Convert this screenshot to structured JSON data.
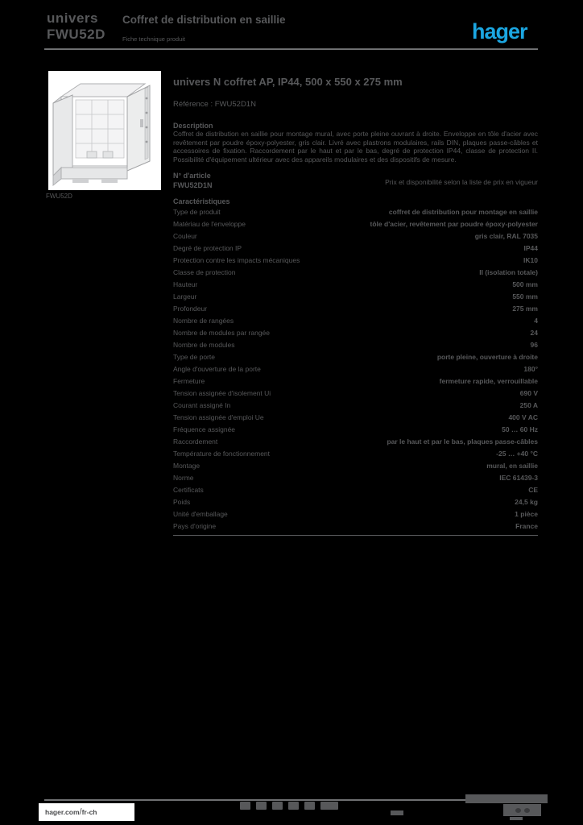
{
  "colors": {
    "background": "#000000",
    "text_gray": "#57585a",
    "divider_gray": "#6f7072",
    "brand_blue": "#1ba6e1",
    "white": "#ffffff"
  },
  "header": {
    "product_ref_line1": "univers",
    "product_ref_line2": "FWU52D",
    "title": "Coffret de distribution en saillie",
    "subtitle": "Fiche technique produit",
    "logo_text": "hager"
  },
  "product_image": {
    "caption": "FWU52D",
    "alt_name": "cabinet-photo"
  },
  "main": {
    "title": "univers N coffret AP, IP44, 500 x 550 x 275 mm",
    "subtitle": "Référence : FWU52D1N",
    "description_heading": "Description",
    "description": "Coffret de distribution en saillie pour montage mural, avec porte pleine ouvrant à droite. Enveloppe en tôle d'acier avec revêtement par poudre époxy-polyester, gris clair. Livré avec plastrons modulaires, rails DIN, plaques passe-câbles et accessoires de fixation. Raccordement par le haut et par le bas, degré de protection IP44, classe de protection II. Possibilité d'équipement ultérieur avec des appareils modulaires et des dispositifs de mesure.",
    "article_label": "N° d'article",
    "article_value": "FWU52D1N",
    "availability_note": "Prix et disponibilité selon la liste de prix en vigueur",
    "characteristics_heading": "Caractéristiques",
    "characteristics": [
      {
        "label": "Type de produit",
        "value": "coffret de distribution pour montage en saillie"
      },
      {
        "label": "Matériau de l'enveloppe",
        "value": "tôle d'acier, revêtement par poudre époxy-polyester"
      },
      {
        "label": "Couleur",
        "value": "gris clair, RAL 7035"
      },
      {
        "label": "Degré de protection IP",
        "value": "IP44"
      },
      {
        "label": "Protection contre les impacts mécaniques",
        "value": "IK10"
      },
      {
        "label": "Classe de protection",
        "value": "II (isolation totale)"
      },
      {
        "label": "Hauteur",
        "value": "500 mm"
      },
      {
        "label": "Largeur",
        "value": "550 mm"
      },
      {
        "label": "Profondeur",
        "value": "275 mm"
      },
      {
        "label": "Nombre de rangées",
        "value": "4"
      },
      {
        "label": "Nombre de modules par rangée",
        "value": "24"
      },
      {
        "label": "Nombre de modules",
        "value": "96"
      },
      {
        "label": "Type de porte",
        "value": "porte pleine, ouverture à droite"
      },
      {
        "label": "Angle d'ouverture de la porte",
        "value": "180°"
      },
      {
        "label": "Fermeture",
        "value": "fermeture rapide, verrouillable"
      },
      {
        "label": "Tension assignée d'isolement Ui",
        "value": "690 V"
      },
      {
        "label": "Courant assigné In",
        "value": "250 A"
      },
      {
        "label": "Tension assignée d'emploi Ue",
        "value": "400 V AC"
      },
      {
        "label": "Fréquence assignée",
        "value": "50 … 60 Hz"
      },
      {
        "label": "Raccordement",
        "value": "par le haut et par le bas, plaques passe-câbles"
      },
      {
        "label": "Température de fonctionnement",
        "value": "-25 … +40 °C"
      },
      {
        "label": "Montage",
        "value": "mural, en saillie"
      },
      {
        "label": "Norme",
        "value": "IEC 61439-3"
      },
      {
        "label": "Certificats",
        "value": "CE"
      },
      {
        "label": "Poids",
        "value": "24,5 kg"
      },
      {
        "label": "Unité d'emballage",
        "value": "1 pièce"
      },
      {
        "label": "Pays d'origine",
        "value": "France"
      }
    ]
  },
  "footer": {
    "url_prefix": "hager.com",
    "url_suffix": "fr-ch",
    "certification_icons": [
      "ce-mark",
      "weee-mark",
      "recycling-mark",
      "iso-mark",
      "quality-mark",
      "conformity-mark"
    ]
  }
}
